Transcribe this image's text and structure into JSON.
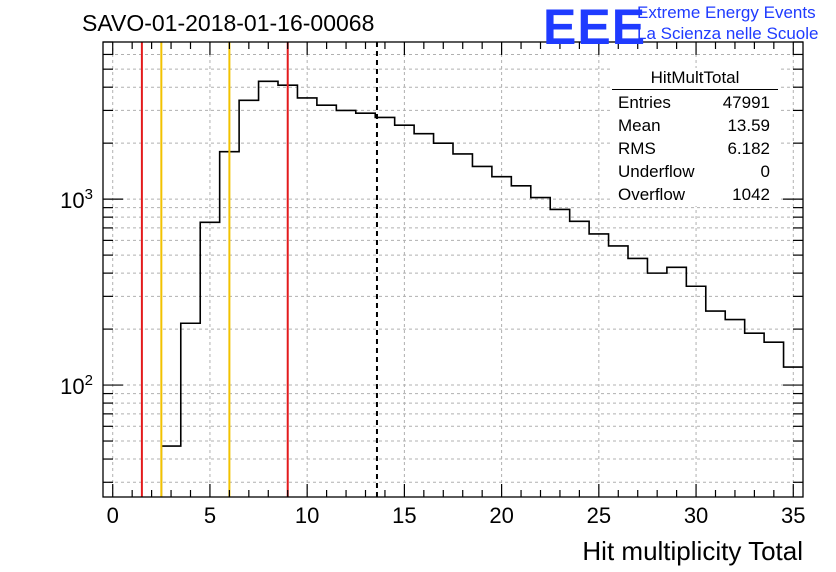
{
  "title": "SAVO-01-2018-01-16-00068",
  "logo": {
    "mark": "EEE",
    "line1": "Extreme Energy Events",
    "line2": "La Scienza nelle Scuole",
    "color": "#1f3bff"
  },
  "stats_box": {
    "name": "HitMultTotal",
    "rows": [
      {
        "label": "Entries",
        "value": "47991"
      },
      {
        "label": "Mean",
        "value": "13.59"
      },
      {
        "label": "RMS",
        "value": "6.182"
      },
      {
        "label": "Underflow",
        "value": "0"
      },
      {
        "label": "Overflow",
        "value": "1042"
      }
    ]
  },
  "chart_data": {
    "type": "histogram",
    "xlabel": "Hit multiplicity Total",
    "ylabel": "",
    "xlim": [
      -0.5,
      35.5
    ],
    "ylim": [
      25,
      7000
    ],
    "y_log": true,
    "grid": true,
    "x_ticks": [
      0,
      5,
      10,
      15,
      20,
      25,
      30,
      35
    ],
    "y_tick_labels": [
      {
        "value": 100,
        "label": "10",
        "exp": "2"
      },
      {
        "value": 1000,
        "label": "10",
        "exp": "3"
      }
    ],
    "bin_edges": [
      2.5,
      3.5,
      4.5,
      5.5,
      6.5,
      7.5,
      8.5,
      9.5,
      10.5,
      11.5,
      12.5,
      13.5,
      14.5,
      15.5,
      16.5,
      17.5,
      18.5,
      19.5,
      20.5,
      21.5,
      22.5,
      23.5,
      24.5,
      25.5,
      26.5,
      27.5,
      28.5,
      29.5,
      30.5,
      31.5,
      32.5,
      33.5,
      34.5,
      35.5
    ],
    "bin_values": [
      47,
      215,
      750,
      1800,
      3400,
      4300,
      4100,
      3500,
      3200,
      3000,
      2900,
      2750,
      2500,
      2250,
      2000,
      1750,
      1500,
      1320,
      1180,
      1020,
      880,
      760,
      650,
      560,
      480,
      400,
      430,
      340,
      250,
      225,
      190,
      170,
      125
    ],
    "lines": [
      {
        "x": 1.5,
        "color": "#e31a1c",
        "style": "solid"
      },
      {
        "x": 2.5,
        "color": "#f2c200",
        "style": "solid"
      },
      {
        "x": 6.0,
        "color": "#f2c200",
        "style": "solid"
      },
      {
        "x": 9.0,
        "color": "#e31a1c",
        "style": "solid"
      },
      {
        "x": 13.59,
        "color": "#000000",
        "style": "dashed"
      }
    ]
  }
}
